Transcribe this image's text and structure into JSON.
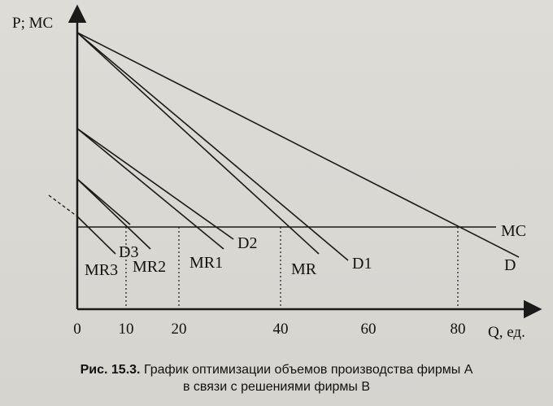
{
  "axes": {
    "y_label": "P; MC",
    "x_label": "Q, ед.",
    "x_ticks": [
      "0",
      "10",
      "20",
      "40",
      "60",
      "80"
    ]
  },
  "curves": {
    "mc": "MC",
    "d": "D",
    "d1": "D1",
    "d2": "D2",
    "d3": "D3",
    "mr": "MR",
    "mr1": "MR1",
    "mr2": "MR2",
    "mr3": "MR3"
  },
  "caption": {
    "prefix": "Рис. 15.3.",
    "line1": "График оптимизации объемов производства фирмы А",
    "line2": "в связи с решениями фирмы В"
  }
}
